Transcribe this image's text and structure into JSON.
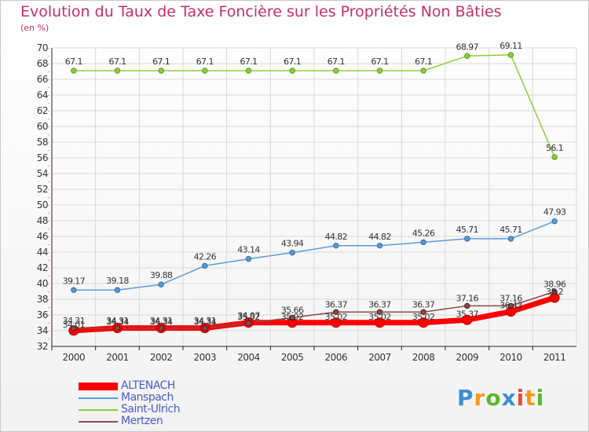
{
  "title": "Evolution du Taux de Taxe Foncière sur les Propriétés Non Bâties",
  "unit_label": "(en %)",
  "logo": {
    "text": "Proxiti",
    "letters": [
      {
        "ch": "P",
        "color": "#3a8fd0"
      },
      {
        "ch": "r",
        "color": "#f39a1e"
      },
      {
        "ch": "o",
        "color": "#5cb82e"
      },
      {
        "ch": "x",
        "color": "#3a8fd0"
      },
      {
        "ch": "i",
        "color": "#e84b35"
      },
      {
        "ch": "t",
        "color": "#f39a1e"
      },
      {
        "ch": "i",
        "color": "#5cb82e"
      }
    ]
  },
  "chart_data": {
    "type": "line",
    "x": [
      "2000",
      "2001",
      "2002",
      "2003",
      "2004",
      "2005",
      "2006",
      "2007",
      "2008",
      "2009",
      "2010",
      "2011"
    ],
    "ylim": [
      32,
      70
    ],
    "yticks": [
      32,
      34,
      36,
      38,
      40,
      42,
      44,
      46,
      48,
      50,
      52,
      54,
      56,
      58,
      60,
      62,
      64,
      66,
      68,
      70
    ],
    "grid": true,
    "legend_position": "bottom-left",
    "series": [
      {
        "name": "ALTENACH",
        "color": "#ff0000",
        "values": [
          34.01,
          34.34,
          34.34,
          34.34,
          35.02,
          35.02,
          35.02,
          35.02,
          35.02,
          35.37,
          36.43,
          38.2
        ],
        "labels": [
          "34.01",
          "34.34",
          "34.34",
          "34.34",
          "35.02",
          "35.02",
          "35.02",
          "35.02",
          "35.02",
          "35.37",
          "36.43",
          "38.2"
        ]
      },
      {
        "name": "Manspach",
        "color": "#5b9bd5",
        "values": [
          39.17,
          39.18,
          39.88,
          42.26,
          43.14,
          43.94,
          44.82,
          44.82,
          45.26,
          45.71,
          45.71,
          47.93
        ],
        "labels": [
          "39.17",
          "39.18",
          "39.88",
          "42.26",
          "43.14",
          "43.94",
          "44.82",
          "44.82",
          "45.26",
          "45.71",
          "45.71",
          "47.93"
        ]
      },
      {
        "name": "Saint-Ulrich",
        "color": "#8fce3c",
        "values": [
          67.1,
          67.1,
          67.1,
          67.1,
          67.1,
          67.1,
          67.1,
          67.1,
          67.1,
          68.97,
          69.11,
          56.1
        ],
        "labels": [
          "67.1",
          "67.1",
          "67.1",
          "67.1",
          "67.1",
          "67.1",
          "67.1",
          "67.1",
          "67.1",
          "68.97",
          "69.11",
          "56.1"
        ]
      },
      {
        "name": "Mertzen",
        "color": "#8b4a4a",
        "values": [
          34.31,
          34.31,
          34.31,
          34.31,
          34.97,
          35.66,
          36.37,
          36.37,
          36.37,
          37.16,
          37.16,
          38.96
        ],
        "labels": [
          "34.31",
          "34.31",
          "34.31",
          "34.31",
          "34.97",
          "35.66",
          "36.37",
          "36.37",
          "36.37",
          "37.16",
          "37.16",
          "38.96"
        ]
      }
    ]
  }
}
